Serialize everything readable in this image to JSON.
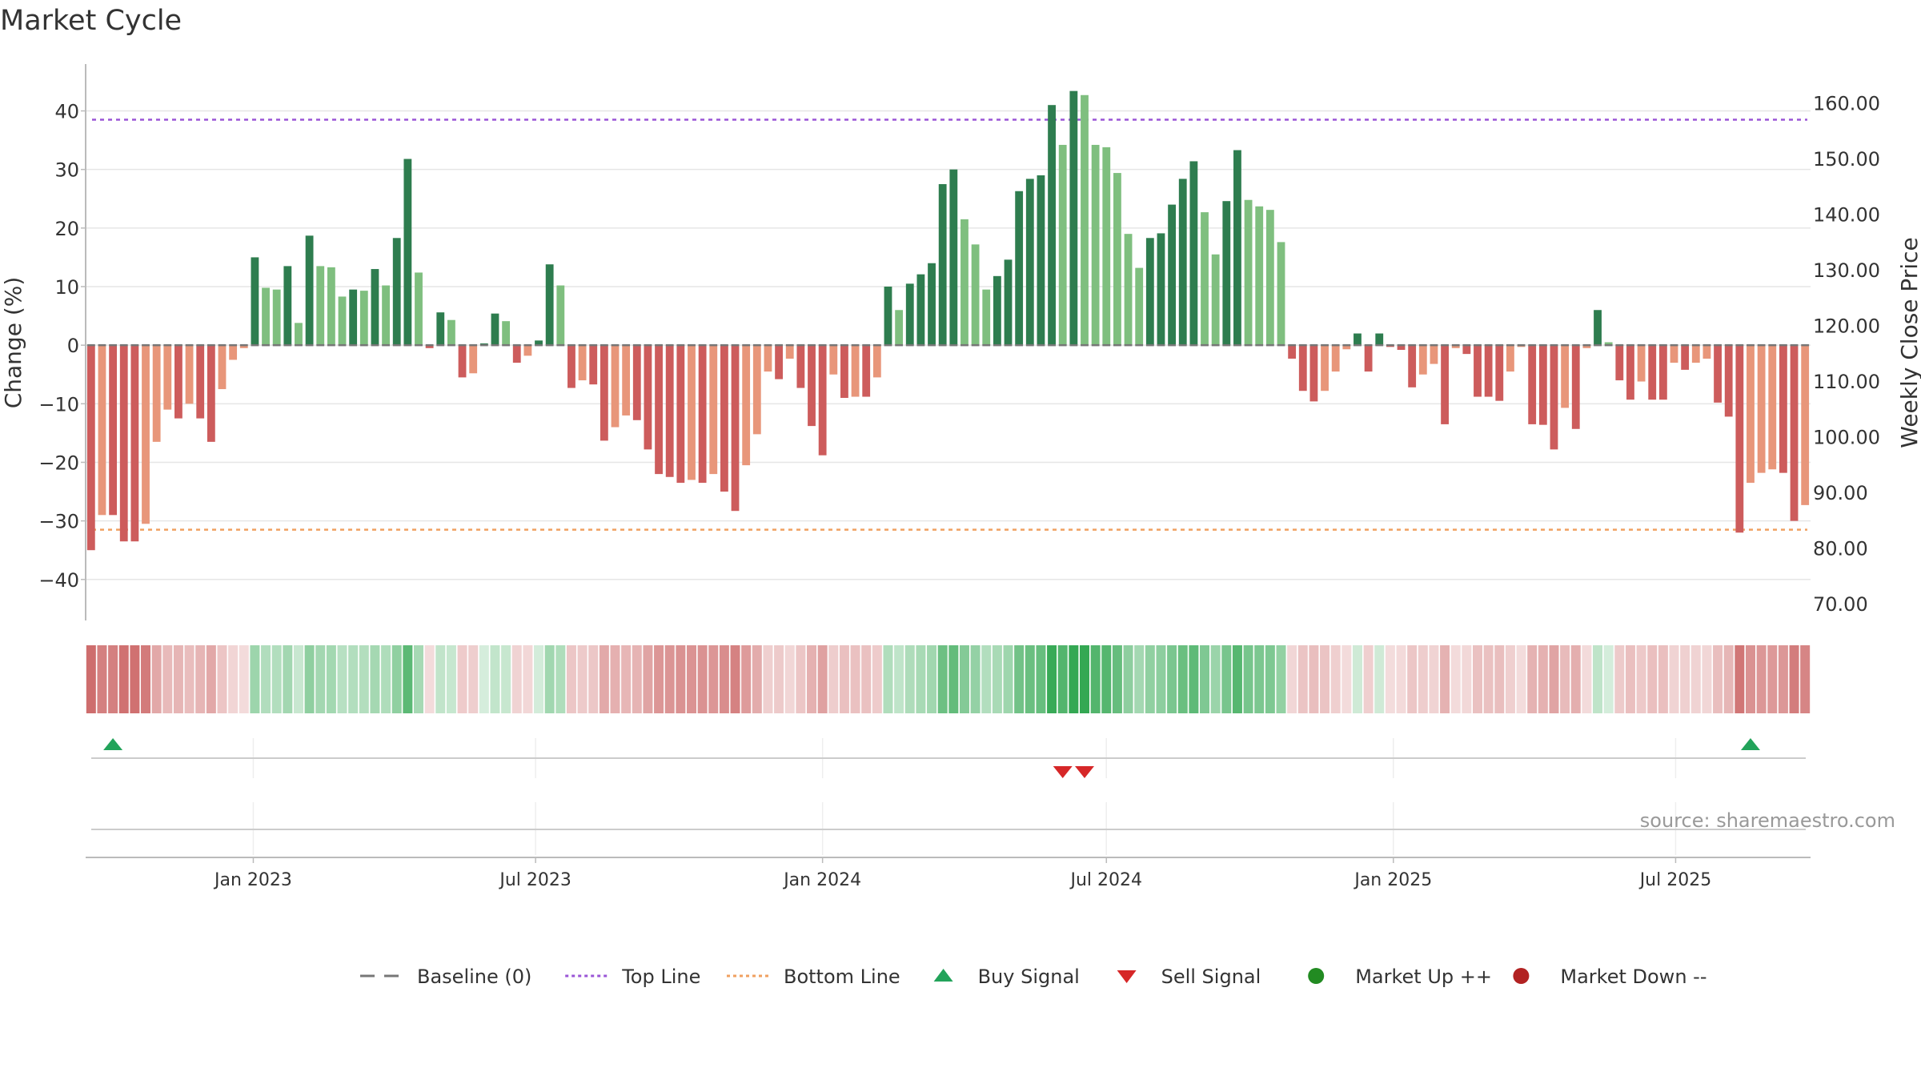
{
  "chart_data": {
    "type": "bar",
    "title": "Market Cycle",
    "ylabel_left": "Change (%)",
    "ylabel_right": "Weekly Close Price",
    "ylim_left": [
      -47,
      48
    ],
    "ylim_right": [
      67,
      167
    ],
    "left_ticks": [
      "40",
      "30",
      "20",
      "10",
      "0",
      "−10",
      "−20",
      "−30",
      "−40"
    ],
    "left_tick_values": [
      40,
      30,
      20,
      10,
      0,
      -10,
      -20,
      -30,
      -40
    ],
    "right_ticks": [
      "160.00",
      "150.00",
      "140.00",
      "130.00",
      "120.00",
      "110.00",
      "100.00",
      "90.00",
      "80.00",
      "70.00"
    ],
    "right_tick_values": [
      160,
      150,
      140,
      130,
      120,
      110,
      100,
      90,
      80,
      70
    ],
    "top_line": 38.5,
    "bottom_line": -31.5,
    "x_start": "2022-09-19",
    "x_ticks": [
      "Jan 2023",
      "Jul 2023",
      "Jan 2024",
      "Jul 2024",
      "Jan 2025",
      "Jul 2025"
    ],
    "x_tick_dates": [
      "2023-01-01",
      "2023-07-01",
      "2024-01-01",
      "2024-07-01",
      "2025-01-01",
      "2025-07-01"
    ],
    "weekly_change_pct": [
      -35,
      -29,
      -29,
      -33.5,
      -33.5,
      -30.5,
      -16.5,
      -11,
      -12.5,
      -10,
      -12.5,
      -16.5,
      -7.5,
      -2.5,
      -0.5,
      15,
      9.8,
      9.5,
      13.5,
      3.8,
      18.7,
      13.5,
      13.3,
      8.3,
      9.5,
      9.3,
      13,
      10.2,
      18.3,
      31.8,
      12.4,
      -0.5,
      5.6,
      4.3,
      -5.5,
      -4.8,
      0.3,
      5.4,
      4.1,
      -3,
      -1.8,
      0.8,
      13.8,
      10.2,
      -7.3,
      -6,
      -6.7,
      -16.3,
      -14,
      -12,
      -12.8,
      -17.8,
      -22,
      -22.5,
      -23.5,
      -23,
      -23.5,
      -22,
      -25,
      -28.3,
      -20.5,
      -15.2,
      -4.5,
      -5.8,
      -2.3,
      -7.3,
      -13.8,
      -18.8,
      -5,
      -9,
      -8.8,
      -8.8,
      -5.5,
      10,
      6,
      10.5,
      12.1,
      14,
      27.5,
      30,
      21.5,
      17.2,
      9.5,
      11.8,
      14.6,
      26.3,
      28.4,
      29,
      41,
      34.2,
      43.4,
      42.7,
      34.2,
      33.8,
      29.4,
      19,
      13.2,
      18.3,
      19.1,
      24,
      28.4,
      31.4,
      22.7,
      15.5,
      24.6,
      33.3,
      24.8,
      23.7,
      23.1,
      17.6,
      -2.3,
      -7.8,
      -9.6,
      -7.8,
      -4.5,
      -0.7,
      2,
      -4.5,
      2,
      -0.3,
      -0.8,
      -7.2,
      -5,
      -3.2,
      -13.5,
      -0.5,
      -1.5,
      -8.8,
      -8.8,
      -9.5,
      -4.5,
      -0.3,
      -13.5,
      -13.6,
      -17.8,
      -10.7,
      -14.3,
      -0.5,
      6,
      0.5,
      -6,
      -9.3,
      -6.2,
      -9.3,
      -9.3,
      -3,
      -4.2,
      -3,
      -2.3,
      -9.8,
      -12.2,
      -32,
      -23.5,
      -21.8,
      -21.2,
      -21.8,
      -30,
      -27.3
    ],
    "buy_signal_dates": [
      "2022-10-03",
      "2025-08-18"
    ],
    "sell_signal_dates": [
      "2024-06-03",
      "2024-06-17"
    ],
    "source": "source: sharemaestro.com",
    "legend": [
      {
        "label": "Baseline (0)",
        "symbol": "dash",
        "color": "#777777"
      },
      {
        "label": "Top Line",
        "symbol": "dotted",
        "color": "#9a55d6"
      },
      {
        "label": "Bottom Line",
        "symbol": "dotted",
        "color": "#f0a060"
      },
      {
        "label": "Buy Signal",
        "symbol": "triangle-up",
        "color": "#22a35a"
      },
      {
        "label": "Sell Signal",
        "symbol": "triangle-down",
        "color": "#d62728"
      },
      {
        "label": "Market Up ++",
        "symbol": "circle",
        "color": "#228b22"
      },
      {
        "label": "Market Down --",
        "symbol": "circle",
        "color": "#b22222"
      }
    ],
    "legend_placement": "bottom-center",
    "grid": true
  }
}
